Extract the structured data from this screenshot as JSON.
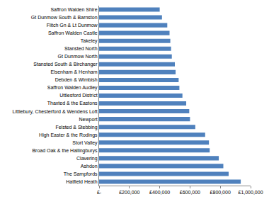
{
  "chart_data": {
    "type": "bar",
    "orientation": "horizontal",
    "color": "#4f81bd",
    "grid": false,
    "categories": [
      "Saffron Walden Shire",
      "Gt Dunmow South & Barnston",
      "Flitch Gn & Lt Dunmow",
      "Saffron Walden Castle",
      "Takeley",
      "Stansted North",
      "Gt Dunmow North",
      "Stansted South & Birchanger",
      "Elsenham & Henham",
      "Debden & Wimbish",
      "Saffron Walden Audley",
      "Uttlesford District",
      "Thaxted & the Eastons",
      "Littlebury, Chesterford & Wendens Loft",
      "Newport",
      "Felsted & Stebbing",
      "High Easter & the Rodings",
      "Stort Valley",
      "Broad Oak & the Hallingburys",
      "Clavering",
      "Ashdon",
      "The Sampfords",
      "Hatfield Heath"
    ],
    "values": [
      400000,
      415000,
      450000,
      465000,
      470000,
      475000,
      480000,
      500000,
      505000,
      525000,
      530000,
      550000,
      575000,
      595000,
      600000,
      635000,
      700000,
      725000,
      730000,
      790000,
      820000,
      855000,
      935000
    ],
    "xlim": [
      0,
      1000000
    ],
    "xticks": [
      {
        "value": 0,
        "label": "£-"
      },
      {
        "value": 200000,
        "label": "£200,000"
      },
      {
        "value": 400000,
        "label": "£400,000"
      },
      {
        "value": 600000,
        "label": "£600,000"
      },
      {
        "value": 800000,
        "label": "£800,000"
      },
      {
        "value": 1000000,
        "label": "£1,000,000"
      }
    ]
  }
}
